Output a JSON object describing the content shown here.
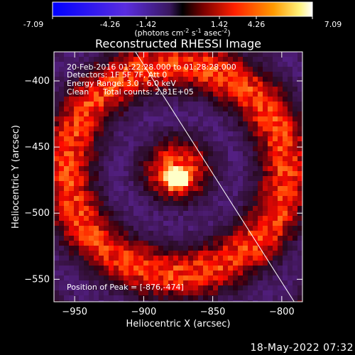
{
  "colorbar": {
    "ticks": [
      "-7.09",
      "-4.26",
      "-1.42",
      "1.42",
      "4.26",
      "7.09"
    ],
    "label_main": "(photons cm",
    "label_sup1": "-2",
    "label_mid1": " s",
    "label_sup2": "-1",
    "label_mid2": " asec",
    "label_sup3": "-2",
    "label_end": ")",
    "range": [
      -7.09,
      7.09
    ]
  },
  "chart_data": {
    "type": "heatmap",
    "title": "Reconstructed RHESSI Image",
    "xlabel": "Heliocentric X (arcsec)",
    "ylabel": "Heliocentric Y (arcsec)",
    "xlim": [
      -965,
      -785
    ],
    "ylim": [
      -567,
      -378
    ],
    "x_ticks": [
      -950,
      -900,
      -850,
      -800
    ],
    "y_ticks": [
      -400,
      -450,
      -500,
      -550
    ],
    "x_tick_labels": [
      "−950",
      "−900",
      "−850",
      "−800"
    ],
    "y_tick_labels": [
      "−400",
      "−450",
      "−500",
      "−550"
    ],
    "annotations": {
      "time_range": "20-Feb-2016 01:22:28.000 to 01:28:28.000",
      "detectors": "Detectors: 1F 5F 7F, Att 0",
      "energy": "Energy Range: 3.0 - 6.0 keV",
      "method": "Clean",
      "total_counts": "Total counts: 2.81E+05",
      "peak": "Position of Peak = [-876,-474]"
    },
    "peak": [
      -876,
      -474
    ],
    "limb_line": [
      [
        -906,
        -378
      ],
      [
        -791,
        -567
      ]
    ]
  },
  "footer": {
    "datetime": "18-May-2022 07:32"
  }
}
